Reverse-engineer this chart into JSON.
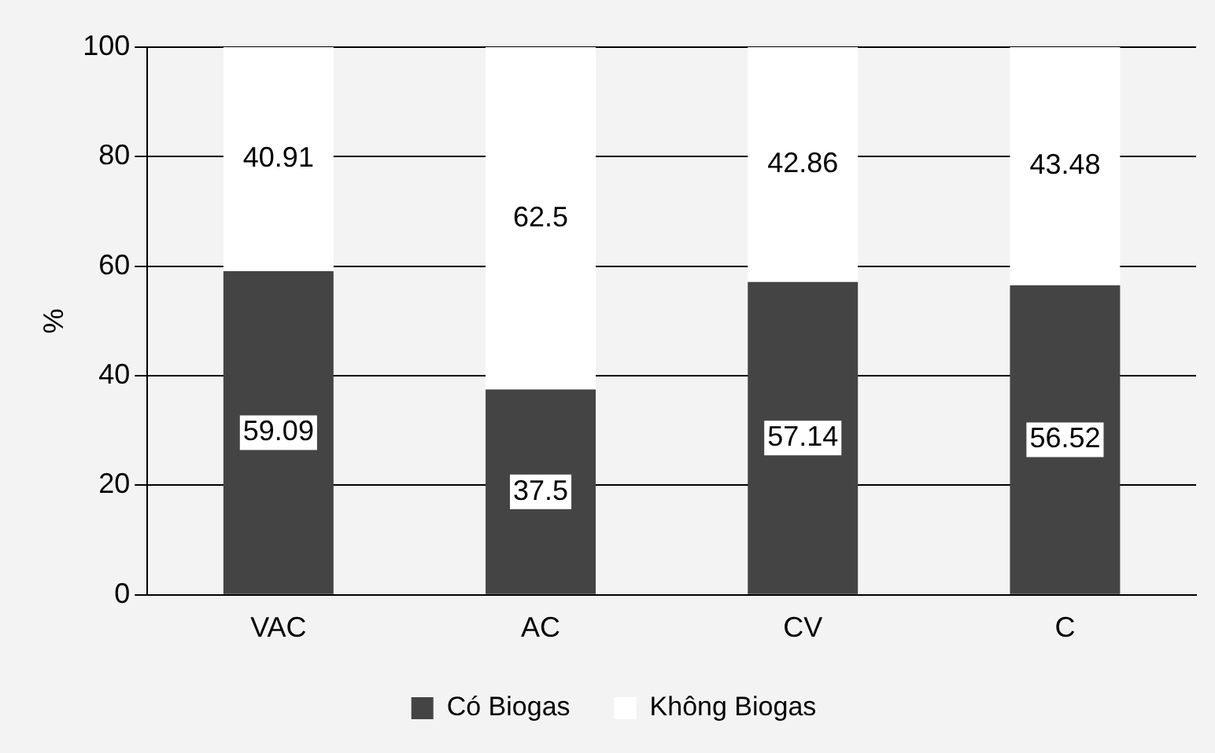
{
  "chart_data": {
    "type": "bar",
    "ylabel": "%",
    "categories": [
      "VAC",
      "AC",
      "CV",
      "C"
    ],
    "stacked": true,
    "series": [
      {
        "name": "Có Biogas",
        "color": "#444444",
        "values": [
          59.09,
          37.5,
          57.14,
          56.52
        ]
      },
      {
        "name": "Không Biogas",
        "color": "#ffffff",
        "values": [
          40.91,
          62.5,
          42.86,
          43.48
        ]
      }
    ],
    "ylim": [
      0,
      100
    ],
    "yticks": [
      0,
      20,
      40,
      60,
      80,
      100
    ],
    "grid": "y",
    "legend": "bottom",
    "data_labels": true
  }
}
